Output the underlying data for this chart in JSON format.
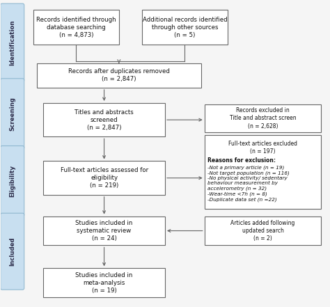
{
  "bg_color": "#f5f5f5",
  "box_fc": "#ffffff",
  "box_ec": "#666666",
  "sidebar_fc": "#c8dff0",
  "sidebar_ec": "#90b8d0",
  "sidebar_labels": [
    "Identification",
    "Screening",
    "Eligibility",
    "Included"
  ],
  "arrow_color": "#666666",
  "n_records_db": "Records identified through\ndatabase searching\n(n = 4,873)",
  "n_records_other": "Additional records identified\nthrough other sources\n(n = 5)",
  "n_duplicates": "Records after duplicates removed\n(n = 2,847)",
  "n_screened": "Titles and abstracts\nscreened\n(n = 2,847)",
  "n_fulltext": "Full-text articles assessed for\neligibility\n(n = 219)",
  "n_systematic": "Studies included in\nsystematic review\n(n = 24)",
  "n_meta": "Studies included in\nmeta-analysis\n(n = 19)",
  "n_excluded_screen": "Records excluded in\nTitle and abstract screen\n(n = 2,628)",
  "n_excluded_fulltext_header": "Full-text articles excluded\n(n = 197)",
  "n_excluded_reasons_bold": "Reasons for exclusion:",
  "n_excluded_reasons": "-Not a primary article (n = 19)\n-Not target population (n = 116)\n-No physical activity/ sedentary\nbehaviour measurement by\naccelerometry (n = 32)\n-Wear-time <7h (n = 8)\n-Duplicate data set (n =22)",
  "n_added": "Articles added following\nupdated search\n(n = 2)"
}
